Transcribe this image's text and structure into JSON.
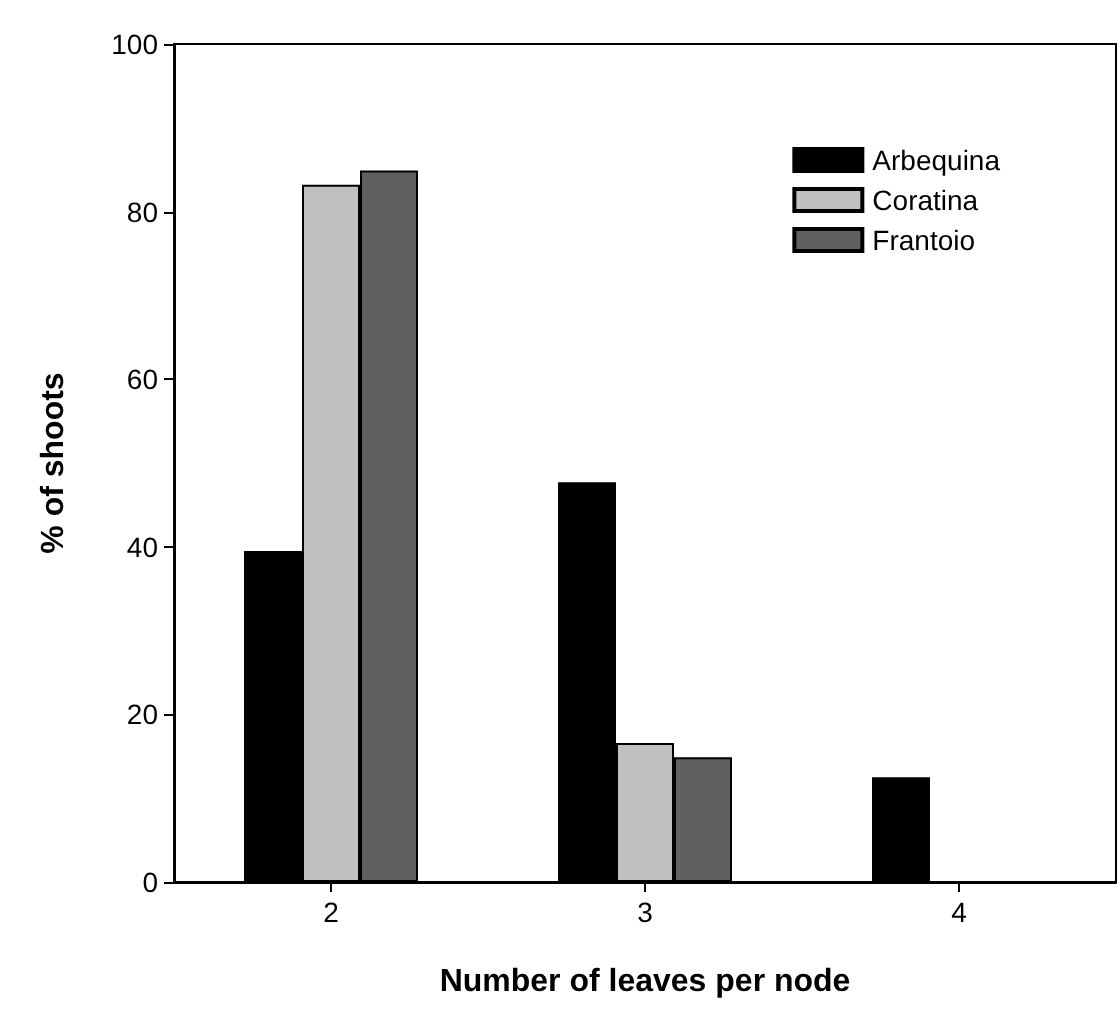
{
  "chart_data": {
    "type": "bar",
    "xlabel": "Number of leaves per node",
    "ylabel": "% of shoots",
    "categories": [
      "2",
      "3",
      "4"
    ],
    "series": [
      {
        "name": "Arbequina",
        "color": "#000000",
        "values": [
          39.5,
          47.7,
          12.5
        ]
      },
      {
        "name": "Coratina",
        "color": "#c0c0c0",
        "values": [
          83.2,
          16.6,
          null
        ]
      },
      {
        "name": "Frantoio",
        "color": "#606060",
        "values": [
          84.9,
          14.9,
          null
        ]
      }
    ],
    "ylim": [
      0,
      100
    ],
    "yticks": [
      0,
      20,
      40,
      60,
      80,
      100
    ],
    "legend": "top right",
    "grid": false
  }
}
